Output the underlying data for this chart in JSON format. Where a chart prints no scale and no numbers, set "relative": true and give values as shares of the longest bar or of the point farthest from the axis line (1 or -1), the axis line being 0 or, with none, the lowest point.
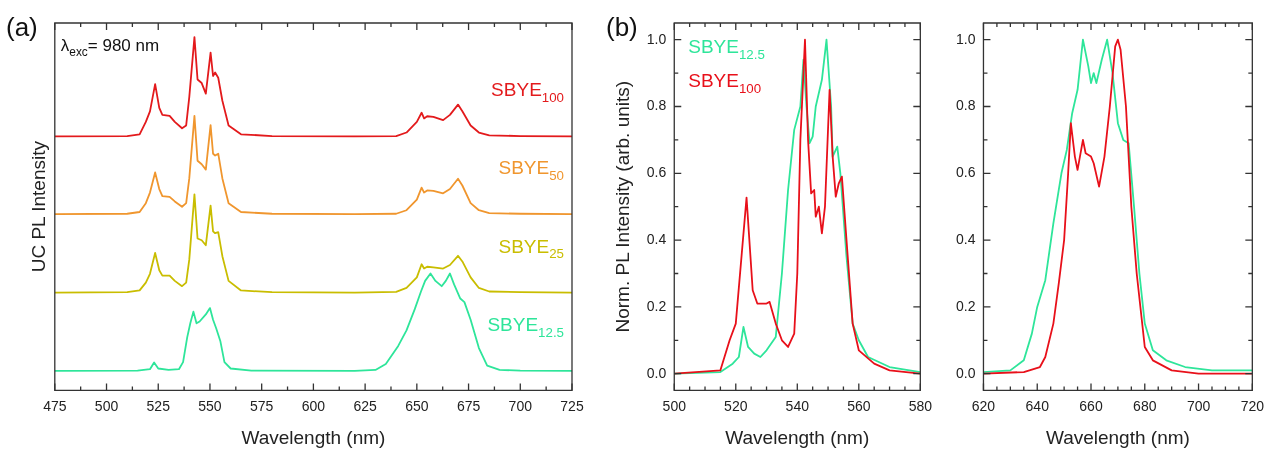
{
  "chart_data": [
    {
      "type": "line",
      "title": "(a)",
      "xlabel": "Wavelength (nm)",
      "ylabel": "UC PL Intensity",
      "relative": true,
      "annotations": [
        "λ$_{exc}$= 980 nm"
      ],
      "xlim": [
        475,
        725
      ],
      "xticks": [
        475,
        {
          "value": 487.5,
          "label": null
        },
        500,
        {
          "value": 512.5,
          "label": null
        },
        525,
        {
          "value": 537.5,
          "label": null
        },
        550,
        {
          "value": 562.5,
          "label": null
        },
        575,
        {
          "value": 587.5,
          "label": null
        },
        600,
        {
          "value": 612.5,
          "label": null
        },
        625,
        {
          "value": 637.5,
          "label": null
        },
        650,
        {
          "value": 662.5,
          "label": null
        },
        675,
        {
          "value": 687.5,
          "label": null
        },
        700,
        {
          "value": 712.5,
          "label": null
        },
        725
      ],
      "series": [
        {
          "name": "SBYE$_{100}$",
          "color": "#e31a1c",
          "x": [
            475,
            510,
            516,
            519,
            521,
            523.5,
            525.5,
            527,
            530.5,
            533,
            536.5,
            538.5,
            540,
            542.5,
            544,
            546,
            548,
            550.3,
            551.5,
            552.5,
            554,
            556,
            559,
            565,
            580,
            620,
            640,
            645,
            650,
            652.3,
            653.5,
            655,
            658,
            662.7,
            666,
            669.9,
            672,
            676,
            680,
            685,
            700,
            725
          ],
          "values": [
            0.719,
            0.72,
            0.725,
            0.76,
            0.79,
            0.867,
            0.8,
            0.78,
            0.777,
            0.76,
            0.742,
            0.75,
            0.83,
            1.0,
            0.88,
            0.87,
            0.84,
            0.956,
            0.89,
            0.9,
            0.885,
            0.82,
            0.75,
            0.725,
            0.72,
            0.719,
            0.72,
            0.73,
            0.76,
            0.786,
            0.77,
            0.776,
            0.774,
            0.765,
            0.78,
            0.809,
            0.79,
            0.75,
            0.73,
            0.722,
            0.72,
            0.719
          ]
        },
        {
          "name": "SBYE$_{50}$",
          "color": "#f0962e",
          "x": [
            475,
            510,
            516,
            519,
            521,
            523.5,
            525.5,
            527,
            530.5,
            533,
            536.5,
            538.5,
            540,
            542.5,
            544,
            546,
            548,
            550.3,
            551.5,
            552.5,
            554,
            556,
            559,
            565,
            580,
            620,
            640,
            645,
            650,
            652.3,
            653.5,
            655,
            658,
            662.7,
            666,
            669.9,
            672,
            676,
            680,
            685,
            700,
            725
          ],
          "values": [
            0.499,
            0.5,
            0.505,
            0.53,
            0.56,
            0.617,
            0.57,
            0.55,
            0.548,
            0.535,
            0.52,
            0.53,
            0.6,
            0.777,
            0.65,
            0.64,
            0.625,
            0.751,
            0.67,
            0.665,
            0.67,
            0.6,
            0.53,
            0.505,
            0.5,
            0.499,
            0.5,
            0.51,
            0.54,
            0.574,
            0.56,
            0.566,
            0.565,
            0.558,
            0.57,
            0.599,
            0.58,
            0.53,
            0.51,
            0.502,
            0.5,
            0.499
          ]
        },
        {
          "name": "SBYE$_{25}$",
          "color": "#c9bd00",
          "x": [
            475,
            510,
            516,
            519,
            521,
            523.5,
            525.5,
            527,
            530.5,
            533,
            536.5,
            538.5,
            540,
            542.5,
            544,
            546,
            548,
            550.3,
            551.5,
            552.5,
            554,
            556,
            559,
            565,
            580,
            620,
            640,
            645,
            650,
            652.3,
            653.5,
            655,
            658,
            662.7,
            666,
            669.9,
            672,
            676,
            680,
            685,
            700,
            725
          ],
          "values": [
            0.277,
            0.278,
            0.283,
            0.305,
            0.33,
            0.389,
            0.34,
            0.325,
            0.325,
            0.31,
            0.295,
            0.305,
            0.37,
            0.555,
            0.43,
            0.425,
            0.411,
            0.523,
            0.45,
            0.445,
            0.448,
            0.38,
            0.31,
            0.283,
            0.278,
            0.277,
            0.279,
            0.29,
            0.32,
            0.357,
            0.345,
            0.35,
            0.348,
            0.345,
            0.355,
            0.381,
            0.365,
            0.32,
            0.29,
            0.28,
            0.278,
            0.277
          ]
        },
        {
          "name": "SBYE$_{12.5}$",
          "color": "#2ee59a",
          "x": [
            475,
            515,
            521,
            523,
            525,
            530,
            535,
            537,
            539,
            540.5,
            542,
            543.5,
            545,
            548,
            550,
            551.5,
            553,
            555,
            557,
            560,
            570,
            620,
            630,
            635,
            638,
            641,
            645,
            649,
            652,
            654,
            656.6,
            659,
            662,
            664,
            666,
            668,
            671,
            673,
            676,
            680,
            684,
            690,
            700,
            725
          ],
          "values": [
            0.055,
            0.056,
            0.06,
            0.079,
            0.062,
            0.058,
            0.06,
            0.08,
            0.15,
            0.19,
            0.223,
            0.19,
            0.195,
            0.215,
            0.233,
            0.2,
            0.176,
            0.14,
            0.08,
            0.062,
            0.056,
            0.055,
            0.058,
            0.075,
            0.1,
            0.126,
            0.17,
            0.23,
            0.28,
            0.31,
            0.331,
            0.31,
            0.295,
            0.31,
            0.331,
            0.3,
            0.26,
            0.25,
            0.2,
            0.12,
            0.07,
            0.058,
            0.056,
            0.055
          ]
        }
      ]
    },
    {
      "type": "line",
      "title": "(b)",
      "xlabel": "Wavelength (nm)",
      "ylabel": "Norm. PL Intensity (arb. units)",
      "legend": "top left",
      "xlim": [
        500,
        580
      ],
      "xticks": [
        500,
        {
          "value": 505,
          "label": null
        },
        {
          "value": 510,
          "label": null
        },
        {
          "value": 515,
          "label": null
        },
        520,
        {
          "value": 525,
          "label": null
        },
        {
          "value": 530,
          "label": null
        },
        {
          "value": 535,
          "label": null
        },
        540,
        {
          "value": 545,
          "label": null
        },
        {
          "value": 550,
          "label": null
        },
        {
          "value": 555,
          "label": null
        },
        560,
        {
          "value": 565,
          "label": null
        },
        {
          "value": 570,
          "label": null
        },
        {
          "value": 575,
          "label": null
        },
        580
      ],
      "ylim": [
        -0.05,
        1.05
      ],
      "yticks": [
        {
          "value": 0,
          "label": "0.0"
        },
        {
          "value": 0.1,
          "label": null
        },
        0.2,
        {
          "value": 0.3,
          "label": null
        },
        0.4,
        {
          "value": 0.5,
          "label": null
        },
        0.6,
        {
          "value": 0.7,
          "label": null
        },
        0.8,
        {
          "value": 0.9,
          "label": null
        },
        {
          "value": 1,
          "label": "1.0"
        }
      ],
      "series": [
        {
          "name": "SBYE$_{12.5}$",
          "color": "#2ee59a",
          "x": [
            500,
            515,
            519,
            521,
            522.5,
            524,
            526,
            528,
            530,
            533,
            535,
            537,
            539,
            541,
            542,
            543,
            544,
            545,
            546,
            548,
            549.5,
            551,
            551.5,
            553,
            554,
            556,
            558,
            560,
            563,
            570,
            580
          ],
          "values": [
            0,
            0.005,
            0.03,
            0.05,
            0.14,
            0.08,
            0.06,
            0.05,
            0.07,
            0.11,
            0.3,
            0.55,
            0.73,
            0.8,
            0.94,
            0.8,
            0.69,
            0.71,
            0.8,
            0.88,
            1.0,
            0.8,
            0.65,
            0.68,
            0.6,
            0.35,
            0.15,
            0.1,
            0.05,
            0.02,
            0.005
          ]
        },
        {
          "name": "SBYE$_{100}$",
          "color": "#e8101a",
          "x": [
            500,
            515,
            518,
            520,
            523.5,
            525.5,
            527,
            530,
            531,
            533,
            535,
            537,
            539,
            540,
            541,
            542.5,
            543.5,
            544.5,
            545.5,
            546,
            547,
            548,
            549,
            550.5,
            551.5,
            552.5,
            553.5,
            554.5,
            556,
            558,
            560,
            565,
            570,
            580
          ],
          "values": [
            0,
            0.01,
            0.1,
            0.15,
            0.527,
            0.25,
            0.21,
            0.21,
            0.215,
            0.15,
            0.1,
            0.08,
            0.12,
            0.3,
            0.7,
            1.0,
            0.7,
            0.54,
            0.55,
            0.47,
            0.5,
            0.42,
            0.5,
            0.85,
            0.65,
            0.53,
            0.57,
            0.59,
            0.4,
            0.15,
            0.07,
            0.03,
            0.01,
            0
          ]
        }
      ]
    },
    {
      "type": "line",
      "xlabel": "Wavelength (nm)",
      "xlim": [
        620,
        720
      ],
      "xticks": [
        620,
        {
          "value": 625,
          "label": null
        },
        {
          "value": 630,
          "label": null
        },
        {
          "value": 635,
          "label": null
        },
        640,
        {
          "value": 645,
          "label": null
        },
        {
          "value": 650,
          "label": null
        },
        {
          "value": 655,
          "label": null
        },
        660,
        {
          "value": 665,
          "label": null
        },
        {
          "value": 670,
          "label": null
        },
        {
          "value": 675,
          "label": null
        },
        680,
        {
          "value": 685,
          "label": null
        },
        {
          "value": 690,
          "label": null
        },
        {
          "value": 695,
          "label": null
        },
        700,
        {
          "value": 705,
          "label": null
        },
        {
          "value": 710,
          "label": null
        },
        {
          "value": 715,
          "label": null
        },
        720
      ],
      "ylim": [
        -0.05,
        1.05
      ],
      "yticks": [
        {
          "value": 0,
          "label": "0.0"
        },
        {
          "value": 0.1,
          "label": null
        },
        0.2,
        {
          "value": 0.3,
          "label": null
        },
        0.4,
        {
          "value": 0.5,
          "label": null
        },
        0.6,
        {
          "value": 0.7,
          "label": null
        },
        0.8,
        {
          "value": 0.9,
          "label": null
        },
        {
          "value": 1,
          "label": "1.0"
        }
      ],
      "series": [
        {
          "color": "#2ee59a",
          "x": [
            620,
            630,
            635,
            638,
            640,
            643,
            646,
            649,
            651,
            653,
            655,
            657,
            659,
            660,
            661,
            662,
            664,
            666,
            668,
            670,
            672,
            674,
            676,
            678,
            680,
            683,
            688,
            695,
            705,
            720
          ],
          "values": [
            0.005,
            0.01,
            0.04,
            0.12,
            0.2,
            0.28,
            0.45,
            0.6,
            0.67,
            0.78,
            0.85,
            1.0,
            0.92,
            0.87,
            0.9,
            0.87,
            0.94,
            1.0,
            0.9,
            0.75,
            0.7,
            0.69,
            0.5,
            0.3,
            0.15,
            0.07,
            0.04,
            0.02,
            0.01,
            0.01
          ]
        },
        {
          "color": "#e8101a",
          "x": [
            620,
            635,
            641,
            643,
            646,
            648,
            650,
            651.5,
            652.5,
            654,
            655,
            657,
            658,
            660,
            661,
            663,
            665,
            667,
            669,
            670,
            671,
            673,
            675,
            677,
            680,
            683,
            690,
            700,
            720
          ],
          "values": [
            0,
            0.005,
            0.02,
            0.05,
            0.15,
            0.27,
            0.4,
            0.6,
            0.75,
            0.65,
            0.61,
            0.7,
            0.66,
            0.65,
            0.63,
            0.56,
            0.65,
            0.8,
            0.98,
            1.0,
            0.97,
            0.8,
            0.5,
            0.3,
            0.08,
            0.04,
            0.01,
            0,
            0
          ]
        }
      ]
    }
  ]
}
